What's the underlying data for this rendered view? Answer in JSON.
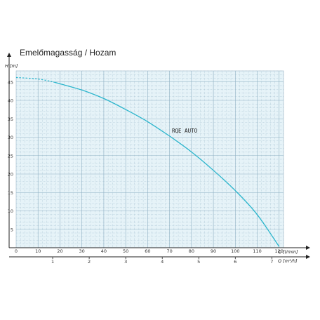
{
  "chart_data": {
    "type": "line",
    "title": "Emelőmagasság / Hozam",
    "ylabel": "H [m]",
    "xlabel": "Q [l/min]",
    "x2label": "Q [m³/h]",
    "ylim": [
      0,
      48
    ],
    "xlim": [
      0,
      122
    ],
    "yticks": [
      5,
      10,
      15,
      20,
      25,
      30,
      35,
      40,
      45
    ],
    "xticks": [
      0,
      10,
      20,
      30,
      40,
      50,
      60,
      70,
      80,
      90,
      100,
      110,
      120
    ],
    "x2ticks": [
      1,
      2,
      3,
      4,
      5,
      6,
      7
    ],
    "grid": true,
    "series": [
      {
        "name": "RQE AUTO",
        "x": [
          0,
          10,
          17,
          20,
          30,
          40,
          50,
          60,
          70,
          80,
          90,
          100,
          110,
          120
        ],
        "y": [
          46.2,
          45.8,
          45,
          44.5,
          42.8,
          40.5,
          37.5,
          34.2,
          30.3,
          26,
          21,
          15.5,
          9,
          0.3
        ],
        "dashed_until": 17
      }
    ],
    "colors": {
      "series": "#2bb5cc",
      "grid": "#8fb0c3",
      "plot_bg": "#e6f3f8"
    }
  }
}
